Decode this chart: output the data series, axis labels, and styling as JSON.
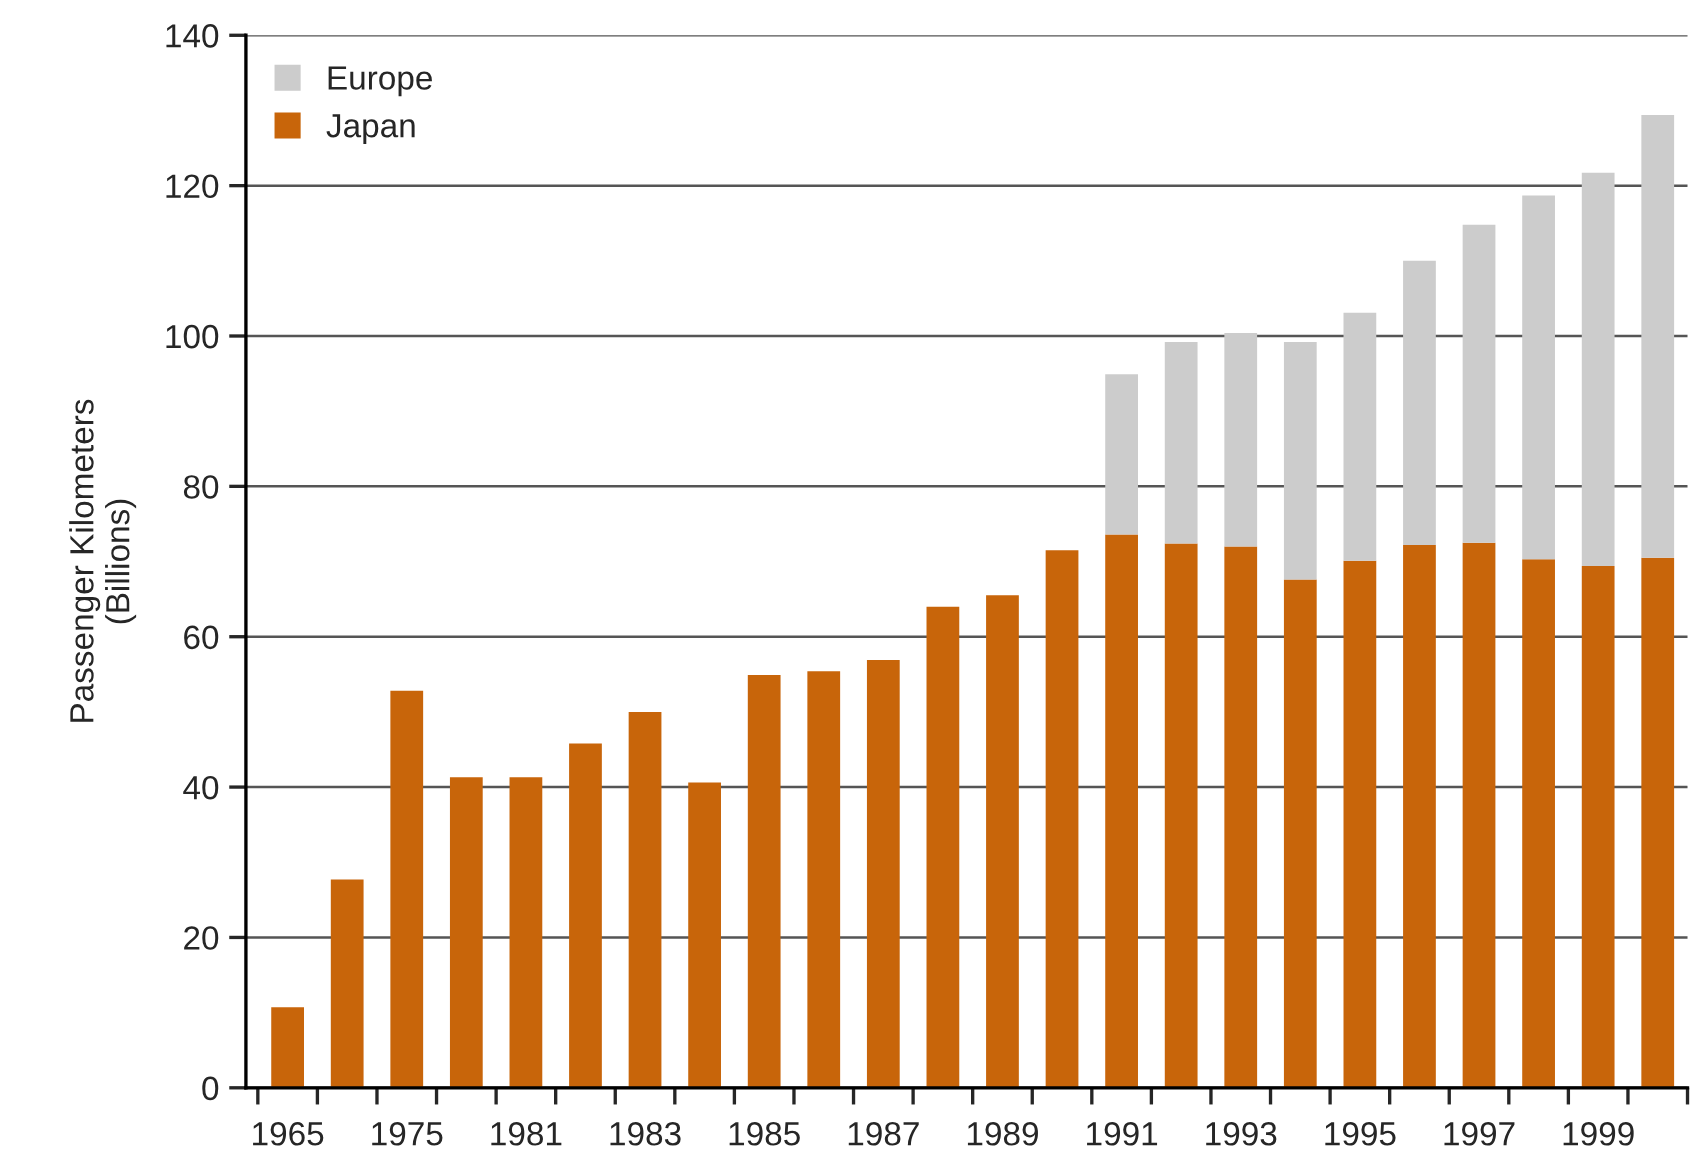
{
  "chart_data": {
    "type": "bar",
    "stacked": true,
    "ylabel": "Passenger Kilometers\n(Billions)",
    "categories": [
      "1965",
      null,
      "1975",
      null,
      "1981",
      null,
      "1983",
      null,
      "1985",
      null,
      "1987",
      null,
      "1989",
      null,
      "1991",
      null,
      "1993",
      null,
      "1995",
      null,
      "1997",
      null,
      "1999",
      null
    ],
    "series": [
      {
        "name": "Japan",
        "color": "#c8650a",
        "values": [
          10.7,
          27.7,
          52.8,
          41.3,
          41.3,
          45.8,
          50.0,
          40.6,
          54.9,
          55.4,
          56.9,
          64.0,
          65.5,
          71.5,
          73.6,
          72.4,
          72.0,
          67.6,
          70.1,
          72.2,
          72.5,
          70.3,
          69.4,
          70.5
        ]
      },
      {
        "name": "Europe",
        "color": "#cccccc",
        "values": [
          null,
          null,
          null,
          null,
          null,
          null,
          null,
          null,
          null,
          null,
          null,
          null,
          null,
          null,
          21.3,
          26.8,
          28.4,
          31.6,
          33.0,
          37.8,
          42.3,
          48.4,
          52.3,
          58.9
        ]
      }
    ],
    "ylim": [
      0,
      140
    ],
    "yticks": [
      0,
      20,
      40,
      60,
      80,
      100,
      120,
      140
    ],
    "grid": "y",
    "legend": "top left"
  }
}
